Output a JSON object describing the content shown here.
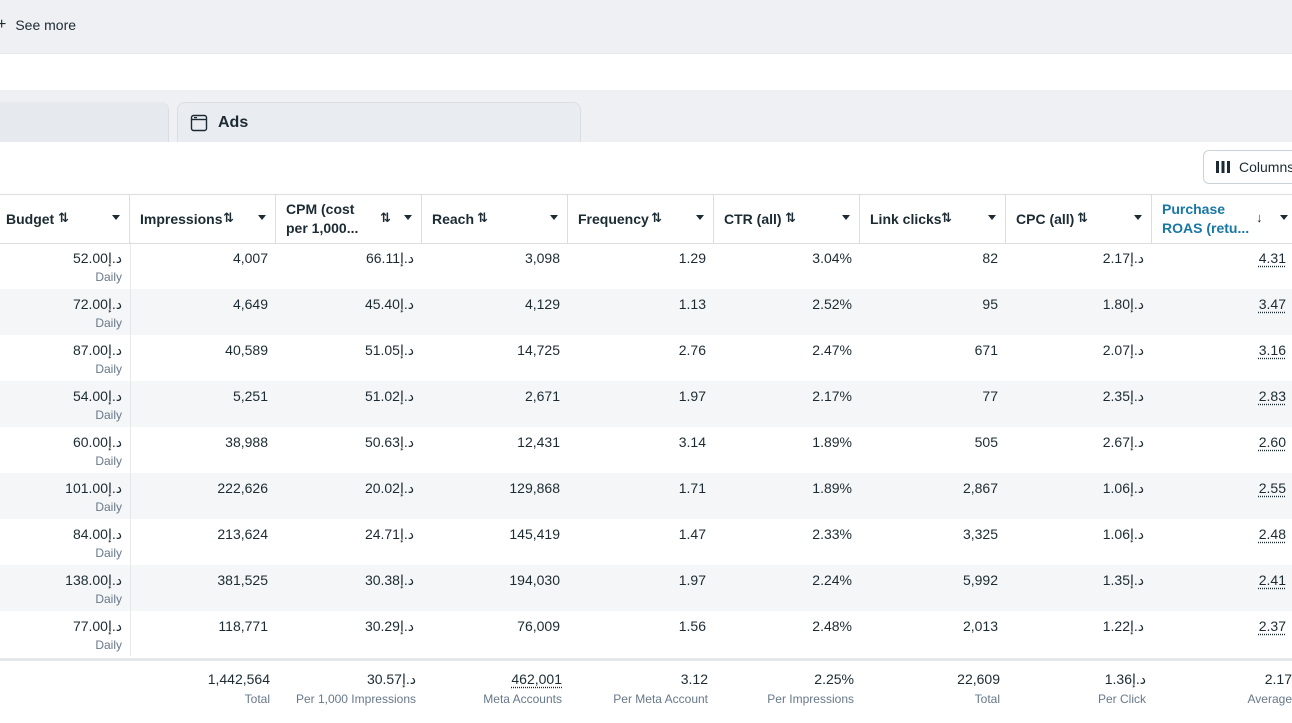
{
  "topbar": {
    "see_more_label": "See more"
  },
  "tabs": {
    "ads_label": "Ads"
  },
  "toolbar": {
    "columns_label": "Columns"
  },
  "columns": [
    {
      "key": "budget",
      "label": "Budget"
    },
    {
      "key": "impressions",
      "label": "Impressions"
    },
    {
      "key": "cpm",
      "label_line1": "CPM (cost",
      "label_line2": "per 1,000..."
    },
    {
      "key": "reach",
      "label": "Reach"
    },
    {
      "key": "frequency",
      "label": "Frequency"
    },
    {
      "key": "ctr",
      "label": "CTR (all)"
    },
    {
      "key": "link_clicks",
      "label": "Link clicks"
    },
    {
      "key": "cpc",
      "label": "CPC (all)"
    },
    {
      "key": "roas",
      "label_line1": "Purchase",
      "label_line2": "ROAS (retu..."
    }
  ],
  "rows": [
    {
      "budget": "د.إ52.00",
      "budget_sub": "Daily",
      "impressions": "4,007",
      "cpm": "د.إ66.11",
      "reach": "3,098",
      "frequency": "1.29",
      "ctr": "3.04%",
      "link_clicks": "82",
      "cpc": "د.إ2.17",
      "roas": "4.31"
    },
    {
      "budget": "د.إ72.00",
      "budget_sub": "Daily",
      "impressions": "4,649",
      "cpm": "د.إ45.40",
      "reach": "4,129",
      "frequency": "1.13",
      "ctr": "2.52%",
      "link_clicks": "95",
      "cpc": "د.إ1.80",
      "roas": "3.47"
    },
    {
      "budget": "د.إ87.00",
      "budget_sub": "Daily",
      "impressions": "40,589",
      "cpm": "د.إ51.05",
      "reach": "14,725",
      "frequency": "2.76",
      "ctr": "2.47%",
      "link_clicks": "671",
      "cpc": "د.إ2.07",
      "roas": "3.16"
    },
    {
      "budget": "د.إ54.00",
      "budget_sub": "Daily",
      "impressions": "5,251",
      "cpm": "د.إ51.02",
      "reach": "2,671",
      "frequency": "1.97",
      "ctr": "2.17%",
      "link_clicks": "77",
      "cpc": "د.إ2.35",
      "roas": "2.83"
    },
    {
      "budget": "د.إ60.00",
      "budget_sub": "Daily",
      "impressions": "38,988",
      "cpm": "د.إ50.63",
      "reach": "12,431",
      "frequency": "3.14",
      "ctr": "1.89%",
      "link_clicks": "505",
      "cpc": "د.إ2.67",
      "roas": "2.60"
    },
    {
      "budget": "د.إ101.00",
      "budget_sub": "Daily",
      "impressions": "222,626",
      "cpm": "د.إ20.02",
      "reach": "129,868",
      "frequency": "1.71",
      "ctr": "1.89%",
      "link_clicks": "2,867",
      "cpc": "د.إ1.06",
      "roas": "2.55"
    },
    {
      "budget": "د.إ84.00",
      "budget_sub": "Daily",
      "impressions": "213,624",
      "cpm": "د.إ24.71",
      "reach": "145,419",
      "frequency": "1.47",
      "ctr": "2.33%",
      "link_clicks": "3,325",
      "cpc": "د.إ1.06",
      "roas": "2.48"
    },
    {
      "budget": "د.إ138.00",
      "budget_sub": "Daily",
      "impressions": "381,525",
      "cpm": "د.إ30.38",
      "reach": "194,030",
      "frequency": "1.97",
      "ctr": "2.24%",
      "link_clicks": "5,992",
      "cpc": "د.إ1.35",
      "roas": "2.41"
    },
    {
      "budget": "د.إ77.00",
      "budget_sub": "Daily",
      "impressions": "118,771",
      "cpm": "د.إ30.29",
      "reach": "76,009",
      "frequency": "1.56",
      "ctr": "2.48%",
      "link_clicks": "2,013",
      "cpc": "د.إ1.22",
      "roas": "2.37"
    }
  ],
  "totals": {
    "impressions": {
      "value": "1,442,564",
      "sub": "Total"
    },
    "cpm": {
      "value": "د.إ30.57",
      "sub": "Per 1,000 Impressions"
    },
    "reach": {
      "value": "462,001",
      "sub": "Meta Accounts"
    },
    "frequency": {
      "value": "3.12",
      "sub": "Per Meta Account"
    },
    "ctr": {
      "value": "2.25%",
      "sub": "Per Impressions"
    },
    "link_clicks": {
      "value": "22,609",
      "sub": "Total"
    },
    "cpc": {
      "value": "د.إ1.36",
      "sub": "Per Click"
    },
    "roas": {
      "value": "2.17",
      "sub": "Average"
    }
  },
  "colors": {
    "accent_blue": "#1877a6",
    "row_alt": "#f5f6f7",
    "muted_text": "#67788a"
  }
}
